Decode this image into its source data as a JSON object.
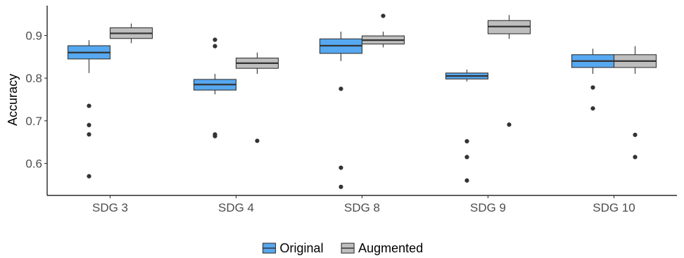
{
  "chart_data": {
    "type": "boxplot",
    "title": "",
    "xlabel": "",
    "ylabel": "Accuracy",
    "ylim": [
      0.525,
      0.97
    ],
    "yticks": [
      0.6,
      0.7,
      0.8,
      0.9
    ],
    "ytick_labels": [
      "0.6",
      "0.7",
      "0.8",
      "0.9"
    ],
    "categories": [
      "SDG 3",
      "SDG 4",
      "SDG 8",
      "SDG 9",
      "SDG 10"
    ],
    "grid": false,
    "legend_position": "bottom",
    "series": [
      {
        "name": "Original",
        "color": "#56a8f0",
        "boxes": [
          {
            "whisker_low": 0.812,
            "q1": 0.845,
            "median": 0.86,
            "q3": 0.876,
            "whisker_high": 0.889,
            "outliers": [
              0.735,
              0.69,
              0.668,
              0.57
            ]
          },
          {
            "whisker_low": 0.762,
            "q1": 0.772,
            "median": 0.785,
            "q3": 0.797,
            "whisker_high": 0.81,
            "outliers": [
              0.89,
              0.875,
              0.668,
              0.664
            ]
          },
          {
            "whisker_low": 0.84,
            "q1": 0.858,
            "median": 0.876,
            "q3": 0.892,
            "whisker_high": 0.909,
            "outliers": [
              0.775,
              0.59,
              0.545
            ]
          },
          {
            "whisker_low": 0.792,
            "q1": 0.798,
            "median": 0.805,
            "q3": 0.812,
            "whisker_high": 0.82,
            "outliers": [
              0.652,
              0.615,
              0.56
            ]
          },
          {
            "whisker_low": 0.81,
            "q1": 0.825,
            "median": 0.84,
            "q3": 0.855,
            "whisker_high": 0.869,
            "outliers": [
              0.778,
              0.729
            ]
          }
        ]
      },
      {
        "name": "Augmented",
        "color": "#bebebe",
        "boxes": [
          {
            "whisker_low": 0.882,
            "q1": 0.893,
            "median": 0.905,
            "q3": 0.918,
            "whisker_high": 0.928,
            "outliers": []
          },
          {
            "whisker_low": 0.81,
            "q1": 0.823,
            "median": 0.835,
            "q3": 0.847,
            "whisker_high": 0.86,
            "outliers": [
              0.653
            ]
          },
          {
            "whisker_low": 0.872,
            "q1": 0.88,
            "median": 0.889,
            "q3": 0.899,
            "whisker_high": 0.909,
            "outliers": [
              0.946
            ]
          },
          {
            "whisker_low": 0.892,
            "q1": 0.904,
            "median": 0.921,
            "q3": 0.935,
            "whisker_high": 0.948,
            "outliers": [
              0.691
            ]
          },
          {
            "whisker_low": 0.81,
            "q1": 0.825,
            "median": 0.84,
            "q3": 0.855,
            "whisker_high": 0.875,
            "outliers": [
              0.667,
              0.615
            ]
          }
        ]
      }
    ]
  }
}
